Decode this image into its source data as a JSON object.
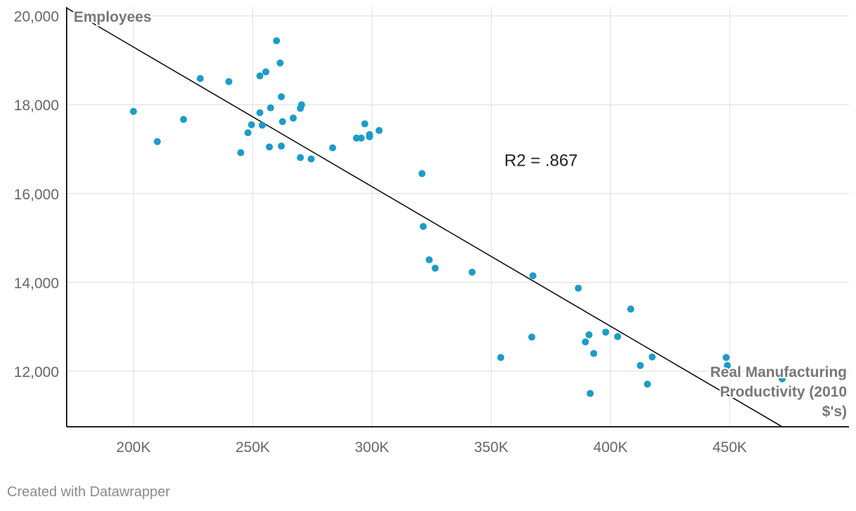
{
  "chart_data": {
    "type": "scatter",
    "title": "",
    "xlabel": "Real Manufacturing Productivity (2010 $'s)",
    "xlabel_lines": [
      "Real Manufacturing",
      "Productivity (2010",
      "$'s)"
    ],
    "ylabel": "Employees",
    "xlim": [
      172000,
      500000
    ],
    "ylim": [
      10750,
      20200
    ],
    "x_ticks": [
      200000,
      250000,
      300000,
      350000,
      400000,
      450000
    ],
    "x_tick_labels": [
      "200K",
      "250K",
      "300K",
      "350K",
      "400K",
      "450K"
    ],
    "y_ticks": [
      12000,
      14000,
      16000,
      18000,
      20000
    ],
    "y_tick_labels": [
      "12,000",
      "14,000",
      "16,000",
      "18,000",
      "20,000"
    ],
    "grid": true,
    "point_color": "#1d9bc9",
    "line_color": "#111111",
    "trendline": {
      "x": [
        172000,
        472000
      ],
      "y": [
        20180,
        10750
      ]
    },
    "annotation": {
      "text": "R2 = .867",
      "x": 355500,
      "y": 16620
    },
    "points": [
      [
        200000,
        17850
      ],
      [
        210000,
        17170
      ],
      [
        221000,
        17670
      ],
      [
        228000,
        18590
      ],
      [
        240000,
        18520
      ],
      [
        245000,
        16920
      ],
      [
        248000,
        17370
      ],
      [
        249500,
        17550
      ],
      [
        253000,
        18650
      ],
      [
        253000,
        17820
      ],
      [
        254000,
        17540
      ],
      [
        255500,
        18740
      ],
      [
        257000,
        17050
      ],
      [
        257500,
        17930
      ],
      [
        260000,
        19440
      ],
      [
        261500,
        18940
      ],
      [
        262000,
        18180
      ],
      [
        262000,
        17070
      ],
      [
        262500,
        17620
      ],
      [
        267000,
        17700
      ],
      [
        270000,
        17920
      ],
      [
        270500,
        18000
      ],
      [
        270000,
        16810
      ],
      [
        274500,
        16780
      ],
      [
        283500,
        17030
      ],
      [
        293500,
        17250
      ],
      [
        295500,
        17250
      ],
      [
        297000,
        17570
      ],
      [
        299000,
        17330
      ],
      [
        299000,
        17280
      ],
      [
        303000,
        17420
      ],
      [
        321000,
        16450
      ],
      [
        321500,
        15260
      ],
      [
        324000,
        14510
      ],
      [
        326500,
        14320
      ],
      [
        342000,
        14230
      ],
      [
        354000,
        12310
      ],
      [
        367000,
        12770
      ],
      [
        367500,
        14150
      ],
      [
        386500,
        13870
      ],
      [
        389500,
        12660
      ],
      [
        391000,
        12820
      ],
      [
        391500,
        11500
      ],
      [
        393000,
        12400
      ],
      [
        398000,
        12880
      ],
      [
        403000,
        12780
      ],
      [
        408500,
        13400
      ],
      [
        412500,
        12130
      ],
      [
        415500,
        11710
      ],
      [
        417500,
        12320
      ],
      [
        448500,
        12310
      ],
      [
        449000,
        12130
      ],
      [
        472000,
        11830
      ]
    ]
  },
  "footer": {
    "credit": "Created with Datawrapper"
  }
}
